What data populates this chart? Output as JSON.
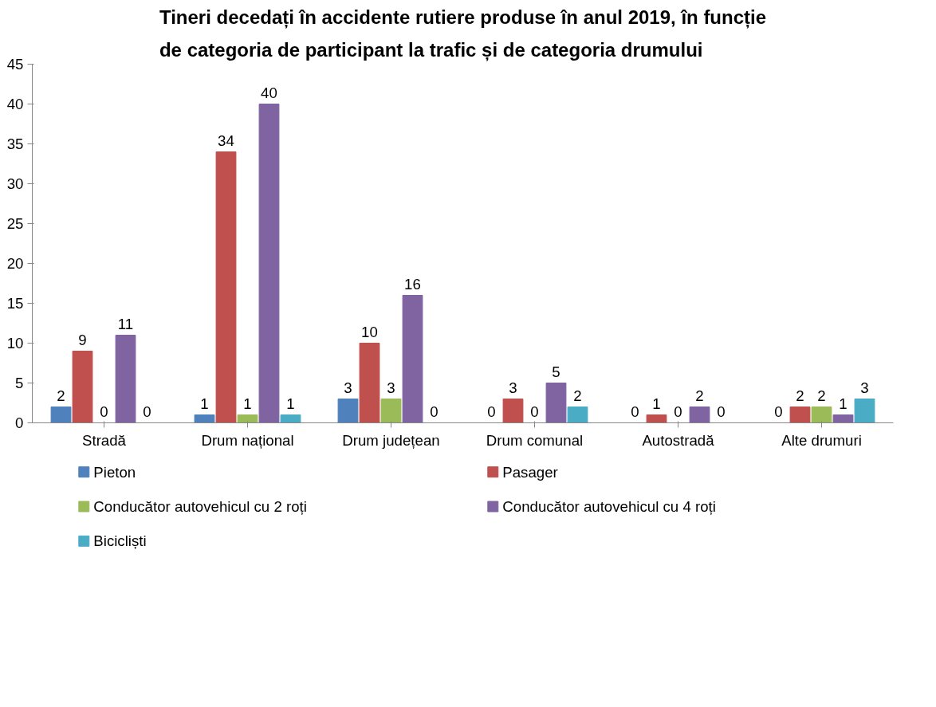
{
  "chart_data": {
    "type": "bar",
    "title": "Tineri decedați în accidente rutiere produse în anul 2019, în funcție\nde categoria de participant la trafic și de categoria drumului",
    "categories": [
      "Stradă",
      "Drum național",
      "Drum județean",
      "Drum comunal",
      "Autostradă",
      "Alte drumuri"
    ],
    "series": [
      {
        "name": "Pieton",
        "color": "#4f81bd",
        "values": [
          2,
          1,
          3,
          0,
          0,
          0
        ]
      },
      {
        "name": "Pasager",
        "color": "#c0504d",
        "values": [
          9,
          34,
          10,
          3,
          1,
          2
        ]
      },
      {
        "name": "Conducător autovehicul cu 2 roți",
        "color": "#9bbb59",
        "values": [
          0,
          1,
          3,
          0,
          0,
          2
        ]
      },
      {
        "name": "Conducător autovehicul cu 4 roți",
        "color": "#8064a2",
        "values": [
          11,
          40,
          16,
          5,
          2,
          1
        ]
      },
      {
        "name": "Bicicliști",
        "color": "#4bacc6",
        "values": [
          0,
          1,
          0,
          2,
          0,
          3
        ]
      }
    ],
    "ylim": [
      0,
      45
    ],
    "yticks": [
      0,
      5,
      10,
      15,
      20,
      25,
      30,
      35,
      40,
      45
    ],
    "data_labels": true,
    "legend": "bottom",
    "grid": false
  }
}
